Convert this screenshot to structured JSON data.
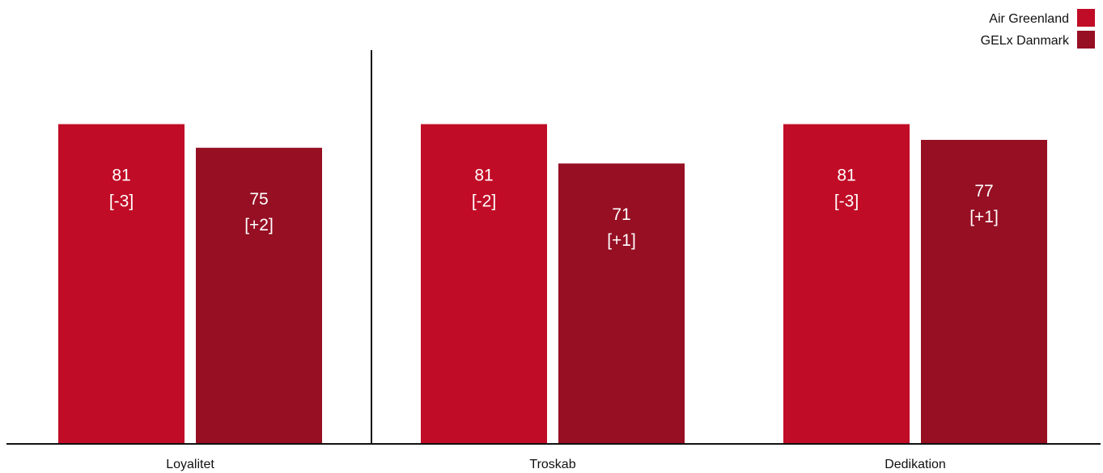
{
  "colors": {
    "series_1": "#c00c26",
    "series_2": "#960f23",
    "axis": "#111111"
  },
  "chart_data": {
    "type": "bar",
    "title": "",
    "xlabel": "",
    "ylabel": "",
    "ylim": [
      0,
      100
    ],
    "grid": false,
    "legend_placement": "top-right",
    "categories": [
      "Loyalitet",
      "Troskab",
      "Dedikation"
    ],
    "series": [
      {
        "name": "Air Greenland",
        "values": [
          81,
          81,
          81
        ],
        "labels": [
          "[-3]",
          "[-2]",
          "[-3]"
        ]
      },
      {
        "name": "GELx Danmark",
        "values": [
          75,
          71,
          77
        ],
        "labels": [
          "[+2]",
          "[+1]",
          "[+1]"
        ]
      }
    ],
    "divider_after_category": "Loyalitet"
  }
}
